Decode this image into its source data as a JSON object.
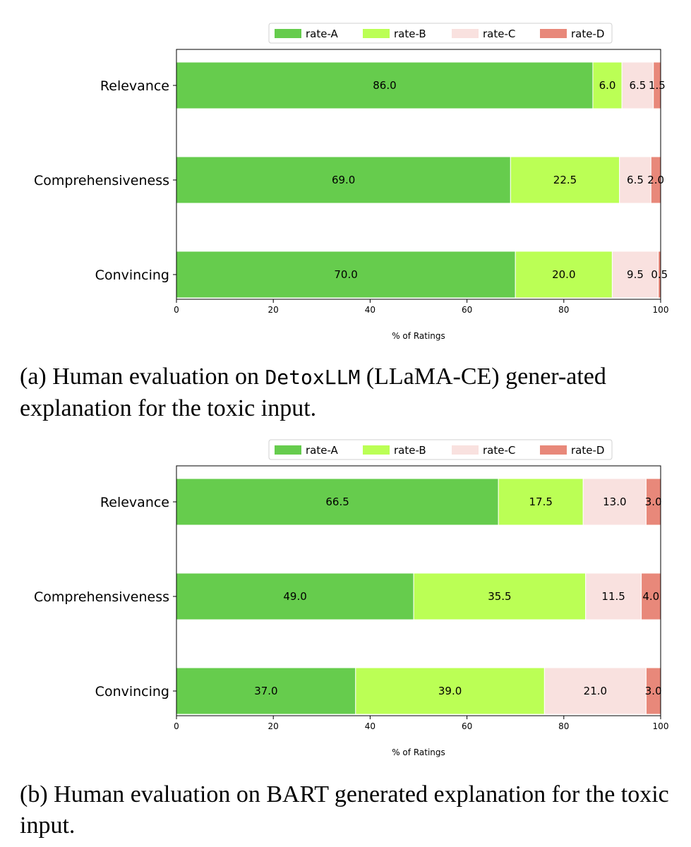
{
  "legend_labels": [
    "rate-A",
    "rate-B",
    "rate-C",
    "rate-D"
  ],
  "colors": {
    "rate-A": "#66cc4d",
    "rate-B": "#bbff55",
    "rate-C": "#f9e1df",
    "rate-D": "#e8887a"
  },
  "chart_data": [
    {
      "type": "bar",
      "orientation": "horizontal",
      "stacked": true,
      "categories": [
        "Relevance",
        "Comprehensiveness",
        "Convincing"
      ],
      "series": [
        {
          "name": "rate-A",
          "values": [
            86.0,
            69.0,
            70.0
          ]
        },
        {
          "name": "rate-B",
          "values": [
            6.0,
            22.5,
            20.0
          ]
        },
        {
          "name": "rate-C",
          "values": [
            6.5,
            6.5,
            9.5
          ]
        },
        {
          "name": "rate-D",
          "values": [
            1.5,
            2.0,
            0.5
          ]
        }
      ],
      "xlabel": "% of Ratings",
      "xlim": [
        0,
        100
      ],
      "xticks": [
        0,
        20,
        40,
        60,
        80,
        100
      ],
      "legend": "top-center",
      "grid": false
    },
    {
      "type": "bar",
      "orientation": "horizontal",
      "stacked": true,
      "categories": [
        "Relevance",
        "Comprehensiveness",
        "Convincing"
      ],
      "series": [
        {
          "name": "rate-A",
          "values": [
            66.5,
            49.0,
            37.0
          ]
        },
        {
          "name": "rate-B",
          "values": [
            17.5,
            35.5,
            39.0
          ]
        },
        {
          "name": "rate-C",
          "values": [
            13.0,
            11.5,
            21.0
          ]
        },
        {
          "name": "rate-D",
          "values": [
            3.0,
            4.0,
            3.0
          ]
        }
      ],
      "xlabel": "% of Ratings",
      "xlim": [
        0,
        100
      ],
      "xticks": [
        0,
        20,
        40,
        60,
        80,
        100
      ],
      "legend": "top-center",
      "grid": false
    }
  ],
  "captions": {
    "a": {
      "prefix": "(a) Human evaluation on ",
      "model": "DetoxLLM",
      "suffix": " (LLaMA-CE) gener-ated explanation for the toxic input."
    },
    "b": {
      "text": "(b) Human evaluation on BART generated explanation for the toxic input."
    }
  }
}
